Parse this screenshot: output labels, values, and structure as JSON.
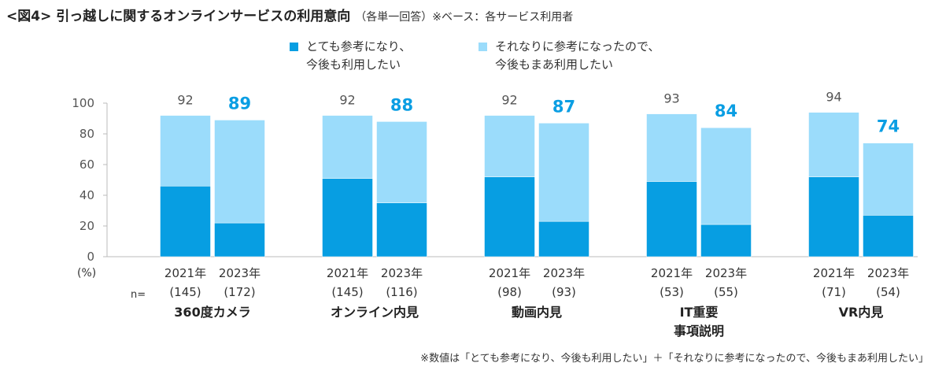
{
  "title": {
    "main": "<図4> 引っ越しに関するオンラインサービスの利用意向",
    "sub": "（各単一回答）※ベース：各サービス利用者"
  },
  "legend": [
    {
      "label": "とても参考になり、\n今後も利用したい",
      "color": "#079ee2"
    },
    {
      "label": "それなりに参考になったので、\n今後もまあ利用したい",
      "color": "#9bdcfb"
    }
  ],
  "footnote": "※数値は「とても参考になり、今後も利用したい」＋「それなりに参考になったので、今後もまあ利用したい」",
  "chart_data": {
    "type": "bar",
    "stacked": true,
    "title": "<図4> 引っ越しに関するオンラインサービスの利用意向",
    "ylabel": "(%)",
    "ylim": [
      0,
      100
    ],
    "yticks": [
      0,
      20,
      40,
      60,
      80,
      100
    ],
    "n_label": "n=",
    "groups": [
      {
        "name": "360度カメラ",
        "bars": [
          {
            "year": "2021年",
            "n": "(145)",
            "series": [
              46,
              46
            ],
            "total": "92",
            "highlight": false
          },
          {
            "year": "2023年",
            "n": "(172)",
            "series": [
              22,
              67
            ],
            "total": "89",
            "highlight": true
          }
        ]
      },
      {
        "name": "オンライン内見",
        "bars": [
          {
            "year": "2021年",
            "n": "(145)",
            "series": [
              51,
              41
            ],
            "total": "92",
            "highlight": false
          },
          {
            "year": "2023年",
            "n": "(116)",
            "series": [
              35,
              53
            ],
            "total": "88",
            "highlight": true
          }
        ]
      },
      {
        "name": "動画内見",
        "bars": [
          {
            "year": "2021年",
            "n": "(98)",
            "series": [
              52,
              40
            ],
            "total": "92",
            "highlight": false
          },
          {
            "year": "2023年",
            "n": "(93)",
            "series": [
              23,
              64
            ],
            "total": "87",
            "highlight": true
          }
        ]
      },
      {
        "name": "IT重要\n事項説明",
        "bars": [
          {
            "year": "2021年",
            "n": "(53)",
            "series": [
              49,
              44
            ],
            "total": "93",
            "highlight": false
          },
          {
            "year": "2023年",
            "n": "(55)",
            "series": [
              21,
              63
            ],
            "total": "84",
            "highlight": true
          }
        ]
      },
      {
        "name": "VR内見",
        "bars": [
          {
            "year": "2021年",
            "n": "(71)",
            "series": [
              52,
              42
            ],
            "total": "94",
            "highlight": false
          },
          {
            "year": "2023年",
            "n": "(54)",
            "series": [
              27,
              47
            ],
            "total": "74",
            "highlight": true
          }
        ]
      }
    ],
    "series_names": [
      "とても参考になり、今後も利用したい",
      "それなりに参考になったので、今後もまあ利用したい"
    ],
    "colors": {
      "dark": "#079ee2",
      "light": "#9bdcfb",
      "highlight_text": "#0a9ee3",
      "normal_text": "#555555",
      "axis": "#bbbbbb"
    }
  }
}
